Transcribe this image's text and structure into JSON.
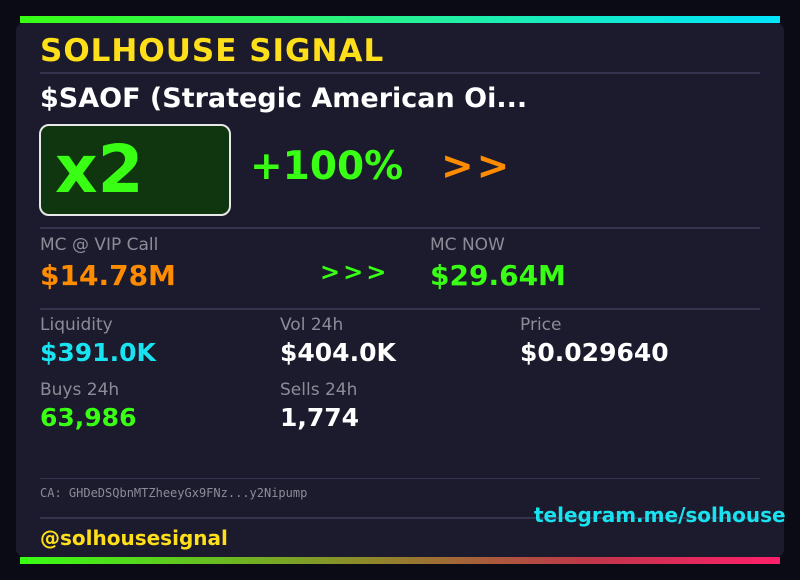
{
  "header": {
    "brand": "SOLHOUSE SIGNAL"
  },
  "token": {
    "ticker_line": "$SAOF  (Strategic American Oi...",
    "multiplier": "x2",
    "change_pct": "+100%",
    "arrows": ">>"
  },
  "mc": {
    "call_label": "MC @ VIP Call",
    "call_value": "$14.78M",
    "arrows": ">>>",
    "now_label": "MC NOW",
    "now_value": "$29.64M"
  },
  "stats": {
    "liquidity_label": "Liquidity",
    "liquidity_value": "$391.0K",
    "vol_label": "Vol 24h",
    "vol_value": "$404.0K",
    "price_label": "Price",
    "price_value": "$0.029640",
    "buys_label": "Buys 24h",
    "buys_value": "63,986",
    "sells_label": "Sells 24h",
    "sells_value": "1,774"
  },
  "contract": {
    "text": "CA: GHDeDSQbnMTZheeyGx9FNz...y2Nipump"
  },
  "footer": {
    "handle": "@solhousesignal",
    "telegram": "telegram.me/solhouse"
  },
  "colors": {
    "yellow": "#ffde1a",
    "green": "#39ff14",
    "orange": "#ff8c00",
    "cyan": "#19e3f0",
    "white": "#ffffff",
    "muted": "#8c8c98"
  }
}
